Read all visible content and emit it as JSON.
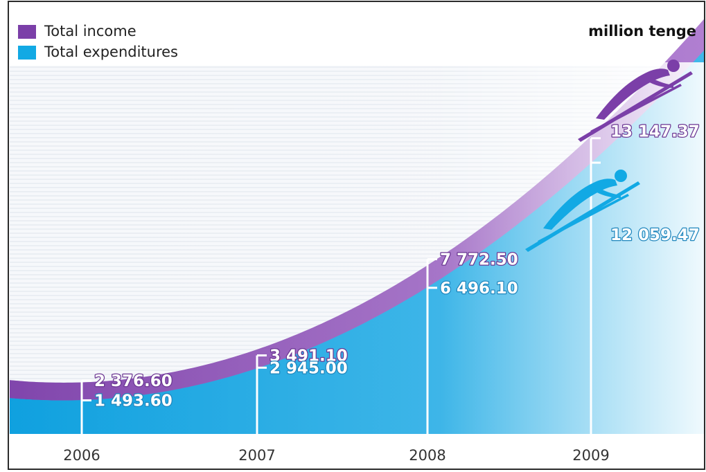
{
  "chart_data": {
    "type": "area",
    "unit_label": "million tenge",
    "categories": [
      "2006",
      "2007",
      "2008",
      "2009"
    ],
    "series": [
      {
        "name": "Total income",
        "color": "#7B3FA8",
        "values": [
          2376.6,
          3491.1,
          7772.5,
          13147.37
        ],
        "labels": [
          "2 376.60",
          "3 491.10",
          "7 772.50",
          "13 147.37"
        ]
      },
      {
        "name": "Total  expenditures",
        "color": "#12A9E4",
        "values": [
          1493.6,
          2945.0,
          6496.1,
          12059.47
        ],
        "labels": [
          "1 493.60",
          "2 945.00",
          "6 496.10",
          "12 059.47"
        ]
      }
    ],
    "legend_position": "top-left",
    "grid": false,
    "icons": [
      "ski-jumper-icon",
      "ski-jumper-icon"
    ]
  }
}
